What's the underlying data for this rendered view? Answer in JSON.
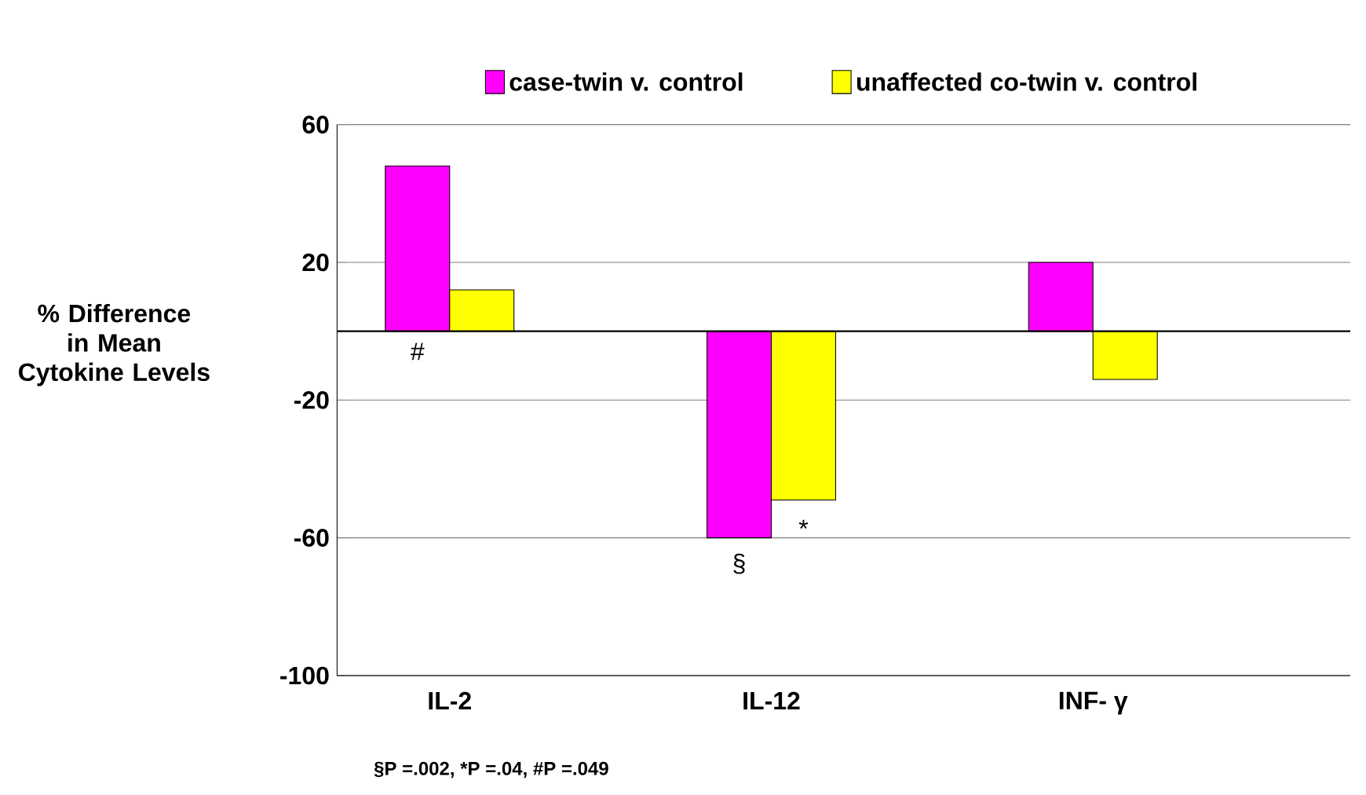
{
  "chart_data": {
    "type": "bar",
    "categories": [
      "IL-2",
      "IL-12",
      "INF- γ"
    ],
    "series": [
      {
        "name": "case-twin v. control",
        "color": "#ff00ff",
        "values": [
          48,
          -60,
          20
        ]
      },
      {
        "name": "unaffected co-twin v. control",
        "color": "#ffff00",
        "values": [
          12,
          -49,
          -14
        ]
      }
    ],
    "ylabel": "% Difference in Mean Cytokine Levels",
    "ylim": [
      -100,
      60
    ],
    "yticks": [
      -100,
      -60,
      -20,
      20,
      60
    ],
    "grid": "y",
    "legend": "top",
    "ref_lines": [
      {
        "axis": "y",
        "value": 0
      }
    ],
    "annotations": [
      "#",
      "§",
      "*",
      "§P =.002, *P =.04,  #P =.049"
    ]
  }
}
